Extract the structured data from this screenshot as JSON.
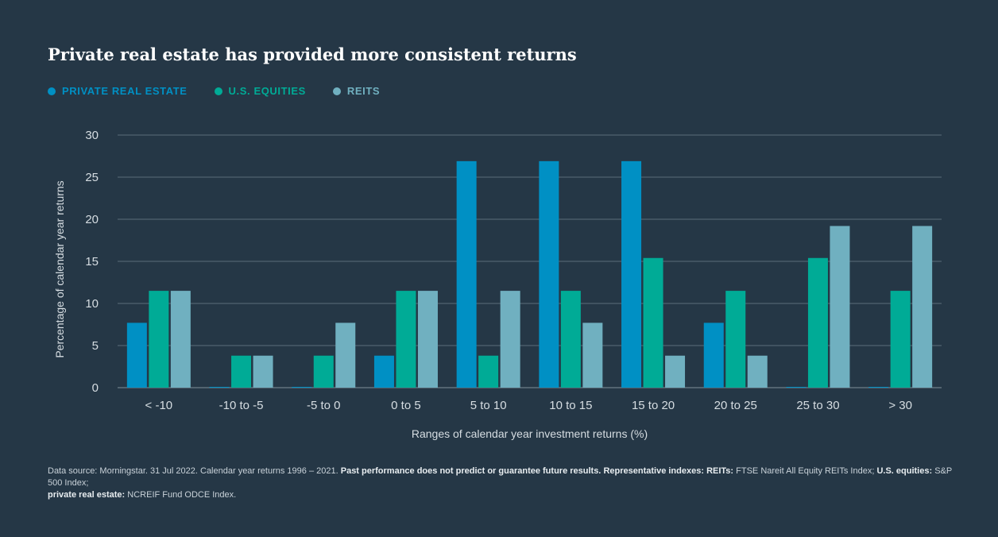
{
  "title": "Private real estate has provided more consistent returns",
  "legend": [
    {
      "label": "PRIVATE REAL ESTATE",
      "color": "#0090C4"
    },
    {
      "label": "U.S. EQUITIES",
      "color": "#00AB96"
    },
    {
      "label": "REITS",
      "color": "#70B0C0"
    }
  ],
  "chart_data": {
    "type": "bar",
    "title": "Private real estate has provided more consistent returns",
    "xlabel": "Ranges of calendar year investment returns (%)",
    "ylabel": "Percentage of calendar year returns",
    "ylim": [
      0,
      30
    ],
    "yticks": [
      0,
      5,
      10,
      15,
      20,
      25,
      30
    ],
    "grid": true,
    "legend_position": "top-left",
    "categories": [
      "< -10",
      "-10 to -5",
      "-5 to 0",
      "0 to 5",
      "5 to 10",
      "10 to 15",
      "15 to 20",
      "20 to 25",
      "25 to 30",
      "> 30"
    ],
    "series": [
      {
        "name": "PRIVATE REAL ESTATE",
        "color": "#0090C4",
        "values": [
          7.7,
          0,
          0,
          3.8,
          26.9,
          26.9,
          26.9,
          7.7,
          0,
          0
        ]
      },
      {
        "name": "U.S. EQUITIES",
        "color": "#00AB96",
        "values": [
          11.5,
          3.8,
          3.8,
          11.5,
          3.8,
          11.5,
          15.4,
          11.5,
          15.4,
          11.5
        ]
      },
      {
        "name": "REITS",
        "color": "#70B0C0",
        "values": [
          11.5,
          3.8,
          7.7,
          11.5,
          11.5,
          7.7,
          3.8,
          3.8,
          19.2,
          19.2
        ]
      }
    ]
  },
  "footnote": {
    "source": "Data source: Morningstar. 31 Jul 2022. Calendar year returns 1996 – 2021.",
    "disclaimer": "Past performance does not predict or guarantee future results.",
    "indexes_label": "Representative indexes:",
    "reits_label": "REITs:",
    "reits_index": "FTSE Nareit All Equity REITs Index;",
    "equities_label": "U.S. equities:",
    "equities_index": "S&P 500 Index;",
    "pre_label": "private real estate:",
    "pre_index": "NCREIF Fund ODCE Index."
  }
}
